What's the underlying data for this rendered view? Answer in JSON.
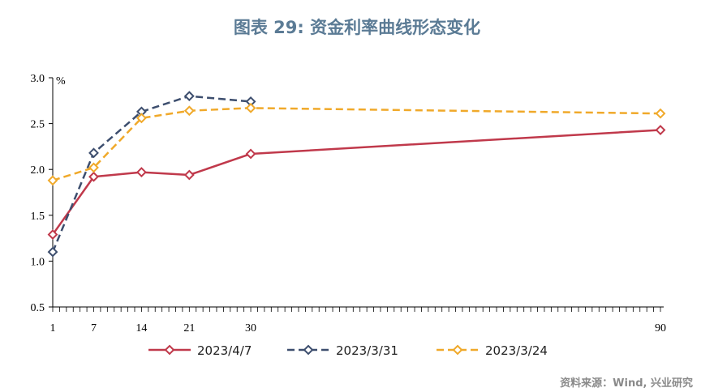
{
  "title": "图表 29: 资金利率曲线形态变化",
  "source": "资料来源：Wind, 兴业研究",
  "chart_data": {
    "type": "line",
    "ylabel": "%",
    "ylim": [
      0.5,
      3.0
    ],
    "yticks": [
      "0.5",
      "1.0",
      "1.5",
      "2.0",
      "2.5",
      "3.0"
    ],
    "xlim": [
      1,
      90
    ],
    "xticks": [
      1,
      7,
      14,
      21,
      30,
      90
    ],
    "series": [
      {
        "name": "2023/4/7",
        "color": "#c0394b",
        "dash": "solid",
        "x": [
          1,
          7,
          14,
          21,
          30,
          90
        ],
        "values": [
          1.29,
          1.92,
          1.97,
          1.94,
          2.17,
          2.43
        ]
      },
      {
        "name": "2023/3/31",
        "color": "#3d4e6e",
        "dash": "dashed",
        "x": [
          1,
          7,
          14,
          21,
          30
        ],
        "values": [
          1.1,
          2.18,
          2.63,
          2.8,
          2.74
        ]
      },
      {
        "name": "2023/3/24",
        "color": "#f0a92a",
        "dash": "dashed",
        "x": [
          1,
          7,
          14,
          21,
          30,
          90
        ],
        "values": [
          1.88,
          2.02,
          2.56,
          2.64,
          2.67,
          2.61
        ]
      }
    ]
  }
}
